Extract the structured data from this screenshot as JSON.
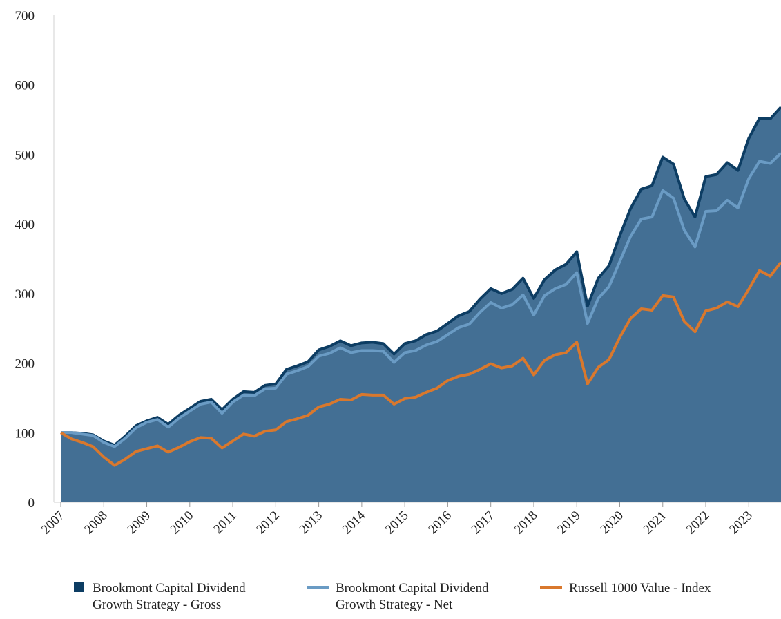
{
  "chart_data": {
    "type": "area-line",
    "categories": [
      "2007",
      null,
      null,
      null,
      "2008",
      null,
      null,
      null,
      "2009",
      null,
      null,
      null,
      "2010",
      null,
      null,
      null,
      "2011",
      null,
      null,
      null,
      "2012",
      null,
      null,
      null,
      "2013",
      null,
      null,
      null,
      "2014",
      null,
      null,
      null,
      "2015",
      null,
      null,
      null,
      "2016",
      null,
      null,
      null,
      "2017",
      null,
      null,
      null,
      "2018",
      null,
      null,
      null,
      "2019",
      null,
      null,
      null,
      "2020",
      null,
      null,
      null,
      "2021",
      null,
      null,
      null,
      "2022",
      null,
      null,
      null,
      "2023",
      null,
      null,
      null
    ],
    "series": [
      {
        "name": "Brookmont Capital Dividend Growth Strategy - Gross",
        "color": "#0d3d63",
        "fill": "#436f94",
        "style": "area",
        "values": [
          100,
          100,
          99,
          97,
          88,
          82,
          95,
          110,
          117,
          122,
          112,
          125,
          135,
          145,
          148,
          133,
          148,
          159,
          158,
          168,
          170,
          191,
          196,
          202,
          219,
          224,
          232,
          225,
          229,
          230,
          228,
          213,
          228,
          232,
          241,
          246,
          257,
          268,
          274,
          292,
          307,
          300,
          306,
          322,
          293,
          320,
          334,
          342,
          360,
          282,
          322,
          340,
          383,
          422,
          450,
          455,
          496,
          486,
          436,
          410,
          468,
          471,
          488,
          477,
          523,
          552,
          551,
          568
        ]
      },
      {
        "name": "Brookmont Capital Dividend Growth Strategy - Net",
        "color": "#6a9bc4",
        "style": "line",
        "values": [
          100,
          100,
          98,
          96,
          86,
          80,
          92,
          107,
          115,
          119,
          108,
          121,
          131,
          141,
          144,
          128,
          144,
          154,
          153,
          163,
          164,
          184,
          189,
          195,
          210,
          214,
          222,
          215,
          218,
          218,
          217,
          201,
          215,
          218,
          226,
          231,
          241,
          251,
          256,
          273,
          287,
          279,
          284,
          298,
          269,
          297,
          307,
          313,
          330,
          257,
          293,
          310,
          346,
          382,
          407,
          410,
          448,
          437,
          391,
          367,
          418,
          419,
          434,
          423,
          465,
          490,
          487,
          502
        ]
      },
      {
        "name": "Russell 1000 Value - Index",
        "color": "#d9782d",
        "style": "line",
        "values": [
          100,
          91,
          86,
          80,
          65,
          53,
          62,
          73,
          77,
          81,
          72,
          79,
          87,
          93,
          92,
          78,
          88,
          98,
          95,
          102,
          104,
          116,
          120,
          125,
          137,
          141,
          148,
          147,
          155,
          154,
          154,
          141,
          149,
          151,
          158,
          164,
          175,
          181,
          184,
          191,
          199,
          193,
          196,
          207,
          183,
          204,
          212,
          215,
          230,
          170,
          194,
          205,
          237,
          264,
          278,
          276,
          297,
          295,
          260,
          245,
          275,
          279,
          288,
          281,
          306,
          333,
          325,
          345
        ]
      }
    ],
    "ylim": [
      0,
      700
    ],
    "yticks": [
      0,
      100,
      200,
      300,
      400,
      500,
      600,
      700
    ],
    "grid": false,
    "legend": "bottom"
  }
}
